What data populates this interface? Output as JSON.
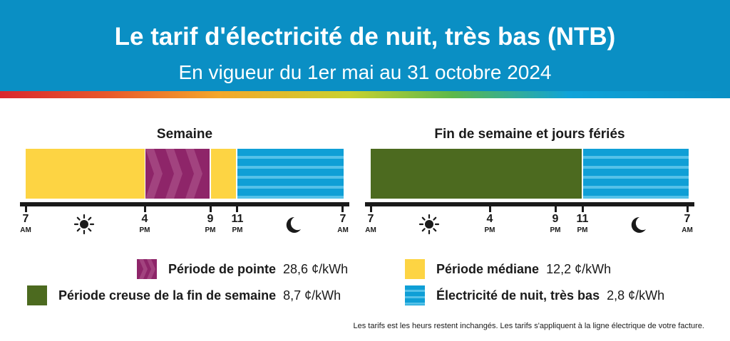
{
  "header": {
    "title": "Le tarif d'électricité de nuit, très bas (NTB)",
    "subtitle": "En vigueur du 1er mai au 31 octobre 2024",
    "background_color": "#0a8fc4"
  },
  "weekday": {
    "title": "Semaine",
    "ticks": [
      {
        "num": "7",
        "sub": "AM"
      },
      {
        "num": "4",
        "sub": "PM"
      },
      {
        "num": "9",
        "sub": "PM"
      },
      {
        "num": "11",
        "sub": "PM"
      },
      {
        "num": "7",
        "sub": "AM"
      }
    ],
    "day_icon": "sun-icon",
    "night_icon": "moon-icon"
  },
  "weekend": {
    "title": "Fin de semaine et jours fériés",
    "ticks": [
      {
        "num": "7",
        "sub": "AM"
      },
      {
        "num": "4",
        "sub": "PM"
      },
      {
        "num": "9",
        "sub": "PM"
      },
      {
        "num": "11",
        "sub": "PM"
      },
      {
        "num": "7",
        "sub": "AM"
      }
    ],
    "day_icon": "sun-icon",
    "night_icon": "moon-icon"
  },
  "legend": {
    "peak": {
      "name": "Période de pointe",
      "rate": "28,6 ¢/kWh",
      "color": "#8e2569"
    },
    "mid": {
      "name": "Période médiane",
      "rate": "12,2 ¢/kWh",
      "color": "#fdd443"
    },
    "weekend_off": {
      "name": "Période creuse de la fin de semaine",
      "rate": "8,7 ¢/kWh",
      "color": "#4c6a1f"
    },
    "ultra_low": {
      "name": "Électricité de nuit, très bas",
      "rate": "2,8 ¢/kWh",
      "color": "#0f9fd6"
    }
  },
  "footnote": "Les tarifs est les heurs restent inchangés. Les tarifs s'appliquent à la ligne électrique de votre facture."
}
